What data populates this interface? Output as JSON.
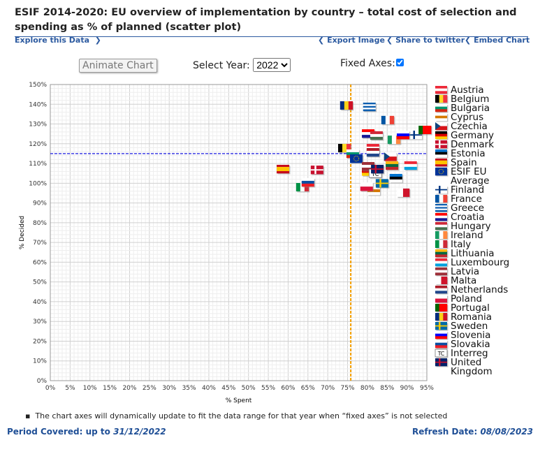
{
  "title": "ESIF 2014-2020: EU overview of implementation by country – total cost of selection and spending as % of planned (scatter plot)",
  "links": {
    "explore": "Explore this Data",
    "export": "Export Image",
    "share": "Share to twitter",
    "embed": "Embed Chart"
  },
  "controls": {
    "animate": "Animate Chart",
    "year_label": "Select Year:",
    "year": "2022",
    "fixed_label": "Fixed Axes:",
    "fixed": true
  },
  "note": "The chart axes will dynamically update to fit the data range for that year when “fixed axes” is not selected",
  "footer": {
    "period_label": "Period Covered: up to",
    "period": "31/12/2022",
    "refresh_label": "Refresh Date:",
    "refresh": "08/08/2023"
  },
  "chart_data": {
    "type": "scatter",
    "xlabel": "% Spent",
    "ylabel": "% Decided",
    "xlim": [
      0,
      95
    ],
    "ylim": [
      0,
      150
    ],
    "xstep": 5,
    "ystep": 10,
    "grid": true,
    "reference_lines": {
      "x": 75.8,
      "y": 115
    },
    "points": [
      {
        "name": "Austria",
        "x": 81.4,
        "y": 117.8,
        "flag": [
          "#ed2939",
          "#fff",
          "#ed2939"
        ],
        "dir": "h"
      },
      {
        "name": "Belgium",
        "x": 74.2,
        "y": 117.8,
        "flag": [
          "#000",
          "#fdda24",
          "#ef3340"
        ],
        "dir": "v"
      },
      {
        "name": "Bulgaria",
        "x": 76.3,
        "y": 115,
        "flag": [
          "#fff",
          "#00966e",
          "#d62612"
        ],
        "dir": "h"
      },
      {
        "name": "Cyprus",
        "x": 81.6,
        "y": 96.2,
        "flag": [
          "#fff",
          "#d57800",
          "#fff"
        ],
        "dir": "h"
      },
      {
        "name": "Czechia",
        "x": 85.8,
        "y": 113.5,
        "flag": [
          "#fff",
          "#d7141a"
        ],
        "dir": "h",
        "tri": "#11457e"
      },
      {
        "name": "Germany",
        "x": 80.2,
        "y": 106,
        "flag": [
          "#000",
          "#dd0000",
          "#ffce00"
        ],
        "dir": "h"
      },
      {
        "name": "Denmark",
        "x": 67.3,
        "y": 106.8,
        "flag": [
          "#c8102e"
        ],
        "dir": "h",
        "cross": "#fff"
      },
      {
        "name": "Estonia",
        "x": 87.2,
        "y": 102.6,
        "flag": [
          "#0072ce",
          "#000",
          "#fff"
        ],
        "dir": "h"
      },
      {
        "name": "Spain",
        "x": 58.7,
        "y": 107.2,
        "flag": [
          "#c60b1e",
          "#ffc400",
          "#ffc400",
          "#c60b1e"
        ],
        "dir": "h"
      },
      {
        "name": "ESIF EU Average",
        "x": 77.2,
        "y": 112.5,
        "flag": [
          "#003399"
        ],
        "dir": "h"
      },
      {
        "name": "Finland",
        "x": 92.2,
        "y": 124.5,
        "flag": [
          "#fff"
        ],
        "dir": "h",
        "cross": "#003580"
      },
      {
        "name": "France",
        "x": 85.1,
        "y": 132,
        "flag": [
          "#0055a4",
          "#fff",
          "#ef4135"
        ],
        "dir": "v"
      },
      {
        "name": "Greece",
        "x": 80.5,
        "y": 138.7,
        "flag": [
          "#0d5eaf",
          "#fff",
          "#0d5eaf",
          "#fff",
          "#0d5eaf"
        ],
        "dir": "h"
      },
      {
        "name": "Croatia",
        "x": 80.2,
        "y": 125.2,
        "flag": [
          "#ff0000",
          "#fff",
          "#171796"
        ],
        "dir": "h"
      },
      {
        "name": "Hungary",
        "x": 82.3,
        "y": 124.2,
        "flag": [
          "#ce2939",
          "#fff",
          "#477050"
        ],
        "dir": "h"
      },
      {
        "name": "Ireland",
        "x": 86.7,
        "y": 122,
        "flag": [
          "#169b62",
          "#fff",
          "#ff883e"
        ],
        "dir": "v"
      },
      {
        "name": "Italy",
        "x": 63.6,
        "y": 98,
        "flag": [
          "#009246",
          "#fff",
          "#ce2b37"
        ],
        "dir": "v"
      },
      {
        "name": "Lithuania",
        "x": 86.2,
        "y": 109,
        "flag": [
          "#fdb913",
          "#006a44",
          "#c1272d"
        ],
        "dir": "h"
      },
      {
        "name": "Luxembourg",
        "x": 90.9,
        "y": 109,
        "flag": [
          "#ed2939",
          "#fff",
          "#00a1de"
        ],
        "dir": "h"
      },
      {
        "name": "Latvia",
        "x": 80.2,
        "y": 108.6,
        "flag": [
          "#9e3039",
          "#fff",
          "#9e3039"
        ],
        "dir": "h"
      },
      {
        "name": "Malta",
        "x": 89,
        "y": 95.2,
        "flag": [
          "#fff",
          "#cf142b"
        ],
        "dir": "v"
      },
      {
        "name": "Netherlands",
        "x": 81.4,
        "y": 115.7,
        "flag": [
          "#ae1c28",
          "#fff",
          "#21468b"
        ],
        "dir": "h"
      },
      {
        "name": "Poland",
        "x": 79.8,
        "y": 98.3,
        "flag": [
          "#fff",
          "#dc143c"
        ],
        "dir": "h"
      },
      {
        "name": "Portugal",
        "x": 94.5,
        "y": 127,
        "flag": [
          "#006600",
          "#ff0000",
          "#ff0000"
        ],
        "dir": "v"
      },
      {
        "name": "Romania",
        "x": 74.7,
        "y": 139.4,
        "flag": [
          "#002b7f",
          "#fcd116",
          "#ce1126"
        ],
        "dir": "v"
      },
      {
        "name": "Sweden",
        "x": 83.7,
        "y": 100,
        "flag": [
          "#006aa7"
        ],
        "dir": "h",
        "cross": "#fecc00"
      },
      {
        "name": "Slovenia",
        "x": 89,
        "y": 124.5,
        "flag": [
          "#fff",
          "#0000ff",
          "#ff0000"
        ],
        "dir": "h"
      },
      {
        "name": "Slovakia",
        "x": 65,
        "y": 100.5,
        "flag": [
          "#fff",
          "#0b4ea2",
          "#ee1c25"
        ],
        "dir": "h"
      },
      {
        "name": "Interreg",
        "x": 82,
        "y": 105,
        "flag": [
          "#fff"
        ],
        "dir": "h",
        "text": "TC"
      },
      {
        "name": "United Kingdom",
        "x": 82.5,
        "y": 107.2,
        "flag": [
          "#012169"
        ],
        "dir": "h",
        "cross": "#c8102e"
      }
    ]
  }
}
